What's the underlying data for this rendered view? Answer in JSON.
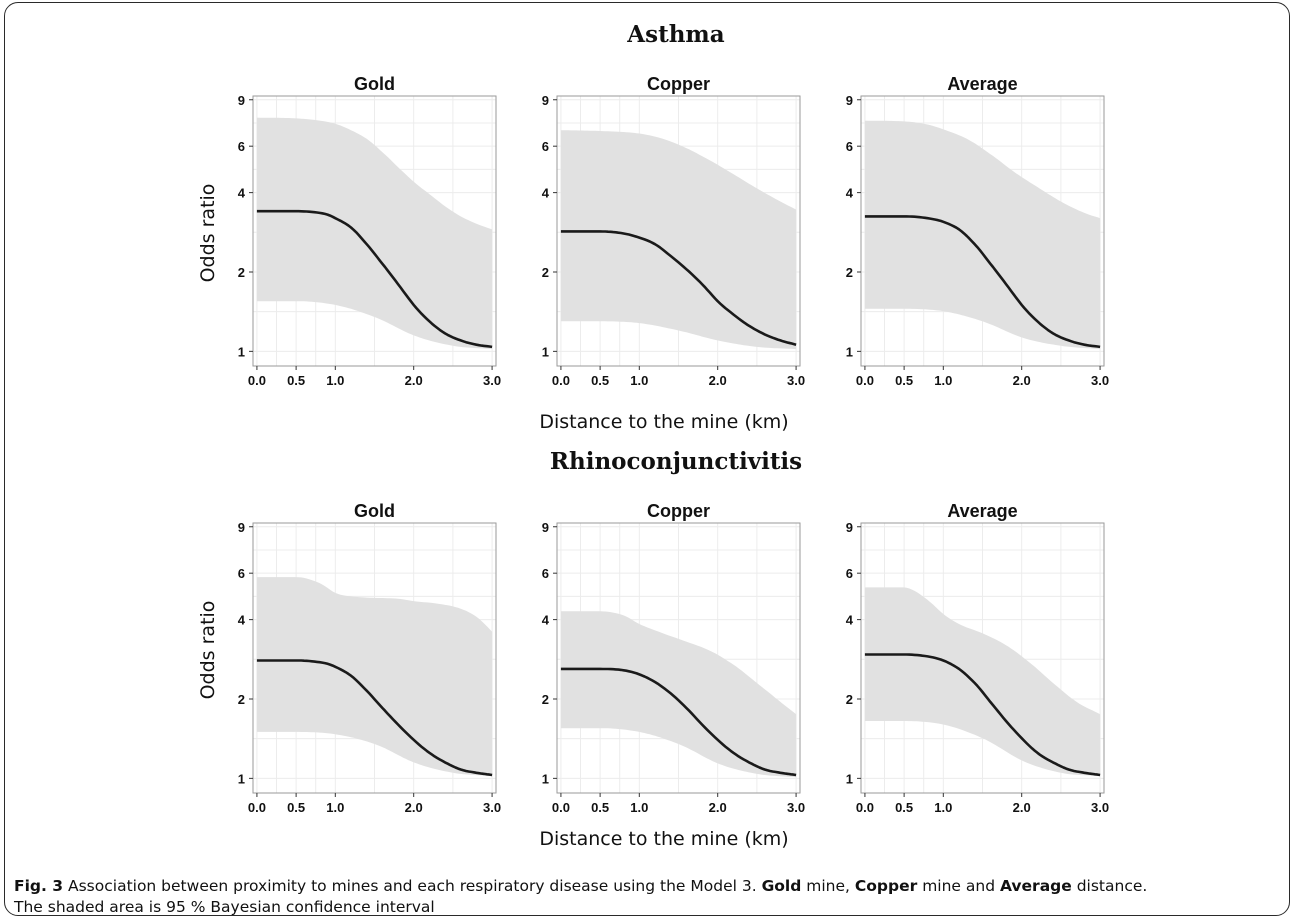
{
  "figure": {
    "caption": {
      "fig_label": "Fig. 3",
      "part1": " Association between proximity to mines and each respiratory disease using the Model 3. ",
      "bold1": "Gold",
      "part2": " mine, ",
      "bold2": "Copper",
      "part3": " mine and ",
      "bold3": "Average",
      "part4": " distance.",
      "line2": "The shaded area is 95 % Bayesian confidence interval"
    }
  },
  "chart_data": [
    {
      "type": "area",
      "panel_group": "Asthma",
      "title": "Gold",
      "xlabel": "Distance to the mine (km)",
      "ylabel": "Odds ratio",
      "xlim": [
        -0.05,
        3.05
      ],
      "ylim": [
        0.88,
        9.3
      ],
      "y_scale": "log",
      "x_ticks": [
        "0.0",
        "0.5",
        "1.0",
        "2.0",
        "3.0"
      ],
      "y_ticks": [
        "1",
        "2",
        "4",
        "6",
        "9"
      ],
      "grid": true,
      "series": [
        {
          "role": "estimate",
          "x": [
            0,
            0.5,
            0.7,
            0.9,
            1.0,
            1.2,
            1.4,
            1.6,
            1.8,
            2.0,
            2.2,
            2.4,
            2.6,
            2.8,
            3.0
          ],
          "values": [
            3.4,
            3.4,
            3.38,
            3.3,
            3.2,
            2.95,
            2.55,
            2.15,
            1.8,
            1.5,
            1.3,
            1.17,
            1.1,
            1.06,
            1.04
          ]
        },
        {
          "role": "upper_95",
          "x": [
            0,
            0.5,
            0.8,
            1.0,
            1.2,
            1.4,
            1.6,
            1.8,
            2.0,
            2.2,
            2.4,
            2.6,
            2.8,
            3.0
          ],
          "values": [
            7.7,
            7.65,
            7.5,
            7.3,
            6.9,
            6.4,
            5.7,
            5.0,
            4.4,
            3.95,
            3.55,
            3.25,
            3.05,
            2.9
          ]
        },
        {
          "role": "lower_95",
          "x": [
            0,
            0.5,
            1.0,
            1.5,
            2.0,
            2.5,
            3.0
          ],
          "values": [
            1.55,
            1.55,
            1.5,
            1.35,
            1.15,
            1.05,
            1.02
          ]
        }
      ]
    },
    {
      "type": "area",
      "panel_group": "Asthma",
      "title": "Copper",
      "xlabel": "Distance to the mine (km)",
      "ylabel": "",
      "xlim": [
        -0.05,
        3.05
      ],
      "ylim": [
        0.88,
        9.3
      ],
      "y_scale": "log",
      "x_ticks": [
        "0.0",
        "0.5",
        "1.0",
        "2.0",
        "3.0"
      ],
      "y_ticks": [
        "1",
        "2",
        "4",
        "6",
        "9"
      ],
      "grid": true,
      "series": [
        {
          "role": "estimate",
          "x": [
            0,
            0.5,
            0.8,
            1.0,
            1.2,
            1.4,
            1.6,
            1.8,
            2.0,
            2.2,
            2.4,
            2.6,
            2.8,
            3.0
          ],
          "values": [
            2.85,
            2.85,
            2.8,
            2.7,
            2.55,
            2.3,
            2.05,
            1.8,
            1.55,
            1.38,
            1.25,
            1.16,
            1.1,
            1.06
          ]
        },
        {
          "role": "upper_95",
          "x": [
            0,
            0.5,
            1.0,
            1.3,
            1.6,
            1.9,
            2.2,
            2.5,
            2.8,
            3.0
          ],
          "values": [
            6.9,
            6.85,
            6.7,
            6.4,
            5.9,
            5.3,
            4.7,
            4.15,
            3.7,
            3.45
          ]
        },
        {
          "role": "lower_95",
          "x": [
            0,
            0.5,
            1.0,
            1.5,
            2.0,
            2.5,
            3.0
          ],
          "values": [
            1.3,
            1.3,
            1.28,
            1.2,
            1.1,
            1.04,
            1.02
          ]
        }
      ]
    },
    {
      "type": "area",
      "panel_group": "Asthma",
      "title": "Average",
      "xlabel": "Distance to the mine (km)",
      "ylabel": "",
      "xlim": [
        -0.05,
        3.05
      ],
      "ylim": [
        0.88,
        9.3
      ],
      "y_scale": "log",
      "x_ticks": [
        "0.0",
        "0.5",
        "1.0",
        "2.0",
        "3.0"
      ],
      "y_ticks": [
        "1",
        "2",
        "4",
        "6",
        "9"
      ],
      "grid": true,
      "series": [
        {
          "role": "estimate",
          "x": [
            0,
            0.5,
            0.8,
            1.0,
            1.2,
            1.4,
            1.6,
            1.8,
            2.0,
            2.2,
            2.4,
            2.6,
            2.8,
            3.0
          ],
          "values": [
            3.25,
            3.25,
            3.2,
            3.1,
            2.9,
            2.55,
            2.15,
            1.8,
            1.5,
            1.3,
            1.17,
            1.1,
            1.06,
            1.04
          ]
        },
        {
          "role": "upper_95",
          "x": [
            0,
            0.5,
            0.8,
            1.0,
            1.3,
            1.6,
            1.9,
            2.2,
            2.5,
            2.8,
            3.0
          ],
          "values": [
            7.5,
            7.45,
            7.25,
            6.95,
            6.4,
            5.6,
            4.8,
            4.2,
            3.7,
            3.35,
            3.2
          ]
        },
        {
          "role": "lower_95",
          "x": [
            0,
            0.5,
            1.0,
            1.5,
            2.0,
            2.5,
            3.0
          ],
          "values": [
            1.45,
            1.45,
            1.42,
            1.3,
            1.13,
            1.05,
            1.02
          ]
        }
      ]
    },
    {
      "type": "area",
      "panel_group": "Rhinoconjunctivitis",
      "title": "Gold",
      "xlabel": "Distance to the mine (km)",
      "ylabel": "Odds ratio",
      "xlim": [
        -0.05,
        3.05
      ],
      "ylim": [
        0.88,
        9.3
      ],
      "y_scale": "log",
      "x_ticks": [
        "0.0",
        "0.5",
        "1.0",
        "2.0",
        "3.0"
      ],
      "y_ticks": [
        "1",
        "2",
        "4",
        "6",
        "9"
      ],
      "grid": true,
      "series": [
        {
          "role": "estimate",
          "x": [
            0,
            0.5,
            0.7,
            0.9,
            1.0,
            1.2,
            1.4,
            1.6,
            1.8,
            2.0,
            2.2,
            2.4,
            2.6,
            2.8,
            3.0
          ],
          "values": [
            2.8,
            2.8,
            2.78,
            2.72,
            2.65,
            2.45,
            2.15,
            1.85,
            1.6,
            1.4,
            1.25,
            1.15,
            1.08,
            1.05,
            1.03
          ]
        },
        {
          "role": "upper_95",
          "x": [
            0,
            0.5,
            0.8,
            1.0,
            1.1,
            1.4,
            1.8,
            2.0,
            2.3,
            2.6,
            2.8,
            3.0
          ],
          "values": [
            5.8,
            5.8,
            5.5,
            5.05,
            4.95,
            4.85,
            4.8,
            4.7,
            4.6,
            4.4,
            4.1,
            3.6
          ]
        },
        {
          "role": "lower_95",
          "x": [
            0,
            0.5,
            1.0,
            1.5,
            2.0,
            2.5,
            3.0
          ],
          "values": [
            1.5,
            1.5,
            1.47,
            1.35,
            1.15,
            1.05,
            1.02
          ]
        }
      ]
    },
    {
      "type": "area",
      "panel_group": "Rhinoconjunctivitis",
      "title": "Copper",
      "xlabel": "Distance to the mine (km)",
      "ylabel": "",
      "xlim": [
        -0.05,
        3.05
      ],
      "ylim": [
        0.88,
        9.3
      ],
      "y_scale": "log",
      "x_ticks": [
        "0.0",
        "0.5",
        "1.0",
        "2.0",
        "3.0"
      ],
      "y_ticks": [
        "1",
        "2",
        "4",
        "6",
        "9"
      ],
      "grid": true,
      "series": [
        {
          "role": "estimate",
          "x": [
            0,
            0.5,
            0.8,
            1.0,
            1.2,
            1.4,
            1.6,
            1.8,
            2.0,
            2.2,
            2.4,
            2.6,
            2.8,
            3.0
          ],
          "values": [
            2.6,
            2.6,
            2.57,
            2.48,
            2.32,
            2.1,
            1.85,
            1.6,
            1.4,
            1.25,
            1.15,
            1.08,
            1.05,
            1.03
          ]
        },
        {
          "role": "upper_95",
          "x": [
            0,
            0.5,
            0.8,
            1.0,
            1.3,
            1.6,
            1.9,
            2.2,
            2.5,
            2.8,
            3.0
          ],
          "values": [
            4.3,
            4.3,
            4.15,
            3.85,
            3.55,
            3.3,
            3.05,
            2.7,
            2.3,
            1.95,
            1.75
          ]
        },
        {
          "role": "lower_95",
          "x": [
            0,
            0.5,
            1.0,
            1.5,
            2.0,
            2.5,
            3.0
          ],
          "values": [
            1.55,
            1.55,
            1.5,
            1.35,
            1.14,
            1.04,
            1.01
          ]
        }
      ]
    },
    {
      "type": "area",
      "panel_group": "Rhinoconjunctivitis",
      "title": "Average",
      "xlabel": "Distance to the mine (km)",
      "ylabel": "",
      "xlim": [
        -0.05,
        3.05
      ],
      "ylim": [
        0.88,
        9.3
      ],
      "y_scale": "log",
      "x_ticks": [
        "0.0",
        "0.5",
        "1.0",
        "2.0",
        "3.0"
      ],
      "y_ticks": [
        "1",
        "2",
        "4",
        "6",
        "9"
      ],
      "grid": true,
      "series": [
        {
          "role": "estimate",
          "x": [
            0,
            0.5,
            0.8,
            1.0,
            1.2,
            1.4,
            1.6,
            1.8,
            2.0,
            2.2,
            2.4,
            2.6,
            2.8,
            3.0
          ],
          "values": [
            2.95,
            2.95,
            2.9,
            2.8,
            2.6,
            2.3,
            1.95,
            1.65,
            1.42,
            1.25,
            1.15,
            1.08,
            1.05,
            1.03
          ]
        },
        {
          "role": "upper_95",
          "x": [
            0,
            0.5,
            0.6,
            0.8,
            1.0,
            1.2,
            1.5,
            1.8,
            2.1,
            2.4,
            2.7,
            3.0
          ],
          "values": [
            5.3,
            5.3,
            5.2,
            4.75,
            4.2,
            3.85,
            3.55,
            3.2,
            2.75,
            2.3,
            1.95,
            1.75
          ]
        },
        {
          "role": "lower_95",
          "x": [
            0,
            0.5,
            1.0,
            1.5,
            2.0,
            2.5,
            3.0
          ],
          "values": [
            1.65,
            1.65,
            1.6,
            1.42,
            1.17,
            1.05,
            1.02
          ]
        }
      ]
    }
  ],
  "labels": {
    "group_titles": [
      "Asthma",
      "Rhinoconjunctivitis"
    ],
    "xlabel": "Distance to the mine (km)",
    "ylabel": "Odds ratio"
  },
  "colors": {
    "band": "#e1e1e1",
    "line": "#1a1a1a",
    "grid": "#ececec",
    "axis": "#9a9a9a"
  }
}
